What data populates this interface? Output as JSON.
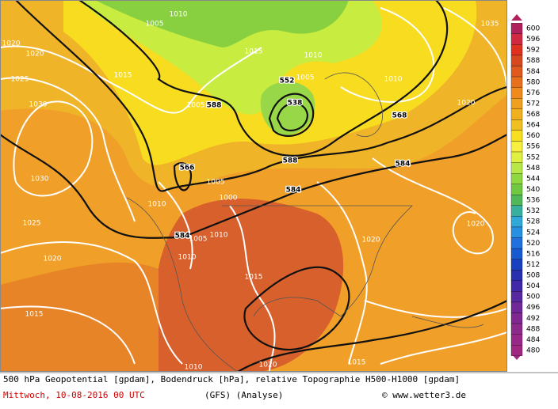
{
  "map": {
    "labels": [
      "1010",
      "1035",
      "1005",
      "1020",
      "1020",
      "1025",
      "1015",
      "1015",
      "1010",
      "1005",
      "552",
      "538",
      "588",
      "1005",
      "1030",
      "568",
      "1020",
      "566",
      "1005",
      "1000",
      "588",
      "584",
      "584",
      "584",
      "1010",
      "1005",
      "1010",
      "1030",
      "1025",
      "1020",
      "1010",
      "1020",
      "1015",
      "1010",
      "1020",
      "1020",
      "1015",
      "1010",
      "1015"
    ],
    "footer": {
      "description": "500 hPa Geopotential [gpdam], Bodendruck [hPa], relative Topographie H500-H1000 [gpdam]",
      "date": "Mittwoch, 10-08-2016  00 UTC",
      "model": "(GFS)  (Analyse)",
      "copyright": "© www.wetter3.de"
    },
    "legend": {
      "levels": [
        600,
        596,
        592,
        588,
        584,
        580,
        576,
        572,
        568,
        564,
        560,
        556,
        552,
        548,
        544,
        540,
        536,
        532,
        528,
        524,
        520,
        516,
        512,
        508,
        504,
        500,
        496,
        492,
        488,
        484,
        480
      ],
      "colors": [
        "#b0205a",
        "#d02840",
        "#e03020",
        "#d84820",
        "#e05a20",
        "#e8701c",
        "#f08a1c",
        "#f0a020",
        "#f0b020",
        "#f0c020",
        "#f8e020",
        "#f8f040",
        "#e0f040",
        "#b8e848",
        "#90d840",
        "#70c840",
        "#50b858",
        "#38b0a0",
        "#30a8d8",
        "#2890e0",
        "#2070e0",
        "#1858d0",
        "#1840c0",
        "#2830b0",
        "#4028a8",
        "#5828a0",
        "#702898",
        "#802890",
        "#8c2a8c",
        "#982888",
        "#a02880"
      ]
    }
  }
}
